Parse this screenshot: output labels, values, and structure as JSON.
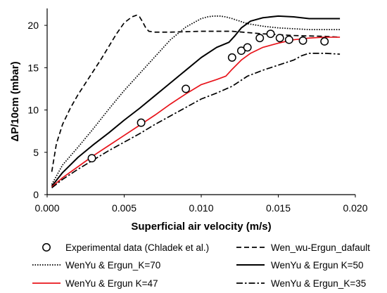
{
  "chart_data": {
    "type": "line",
    "title": "",
    "xlabel": "Superficial air velocity (m/s)",
    "ylabel": "ΔP/10cm (mbar)",
    "xlim": [
      0,
      0.02
    ],
    "ylim": [
      0,
      22
    ],
    "x_ticks": [
      0,
      0.005,
      0.01,
      0.015,
      0.02
    ],
    "x_tick_labels": [
      "0.000",
      "0.005",
      "0.010",
      "0.015",
      "0.020"
    ],
    "y_ticks": [
      0,
      5,
      10,
      15,
      20
    ],
    "y_tick_labels": [
      "0",
      "5",
      "10",
      "15",
      "20"
    ],
    "grid": false,
    "legend_position": "bottom",
    "series": [
      {
        "name": "Experimental data (Chladek et al.)",
        "style": "markers",
        "color": "#000000",
        "x": [
          0.0029,
          0.0061,
          0.009,
          0.012,
          0.0126,
          0.013,
          0.0138,
          0.0145,
          0.0151,
          0.0157,
          0.0166,
          0.018
        ],
        "y": [
          4.3,
          8.5,
          12.5,
          16.2,
          17.0,
          17.4,
          18.5,
          19.0,
          18.5,
          18.3,
          18.2,
          18.1
        ]
      },
      {
        "name": "Wen_wu-Ergun_dafault",
        "style": "dashed",
        "color": "#000000",
        "x": [
          0.0003,
          0.0006,
          0.001,
          0.0015,
          0.002,
          0.0025,
          0.003,
          0.0035,
          0.004,
          0.0045,
          0.005,
          0.0055,
          0.0058,
          0.006,
          0.0062,
          0.0064,
          0.0066,
          0.007,
          0.008,
          0.01,
          0.012,
          0.014,
          0.016,
          0.018,
          0.019
        ],
        "y": [
          2.7,
          6.0,
          8.3,
          10.2,
          11.8,
          13.2,
          14.6,
          16.0,
          17.5,
          19.0,
          20.3,
          21.0,
          21.2,
          21.0,
          20.4,
          19.7,
          19.3,
          19.2,
          19.2,
          19.3,
          19.3,
          19.0,
          18.8,
          18.7,
          18.6
        ]
      },
      {
        "name": "WenYu & Ergun_K=70",
        "style": "dotted",
        "color": "#000000",
        "x": [
          0.0003,
          0.001,
          0.002,
          0.003,
          0.004,
          0.005,
          0.006,
          0.007,
          0.008,
          0.009,
          0.01,
          0.0104,
          0.0108,
          0.0112,
          0.0116,
          0.012,
          0.0125,
          0.013,
          0.014,
          0.015,
          0.016,
          0.017,
          0.019
        ],
        "y": [
          1.2,
          3.5,
          5.6,
          7.8,
          10.1,
          12.3,
          14.3,
          16.3,
          18.3,
          19.8,
          20.8,
          21.0,
          21.1,
          21.1,
          21.0,
          20.8,
          20.5,
          20.2,
          19.9,
          19.7,
          19.6,
          19.5,
          19.5
        ]
      },
      {
        "name": "WenYu & Ergun K=50",
        "style": "solid",
        "color": "#000000",
        "x": [
          0.0003,
          0.001,
          0.002,
          0.003,
          0.004,
          0.005,
          0.006,
          0.007,
          0.008,
          0.009,
          0.01,
          0.011,
          0.0118,
          0.0122,
          0.0126,
          0.0132,
          0.014,
          0.015,
          0.016,
          0.017,
          0.019
        ],
        "y": [
          1.0,
          2.6,
          4.4,
          5.9,
          7.3,
          8.8,
          10.2,
          11.7,
          13.2,
          14.7,
          16.2,
          17.4,
          18.0,
          18.8,
          19.7,
          20.5,
          20.9,
          21.1,
          21.0,
          20.8,
          20.8
        ]
      },
      {
        "name": "WenYu & Ergun K=47",
        "style": "solid",
        "color": "#e8141b",
        "x": [
          0.0003,
          0.001,
          0.002,
          0.003,
          0.004,
          0.005,
          0.006,
          0.007,
          0.008,
          0.009,
          0.01,
          0.011,
          0.0116,
          0.012,
          0.0126,
          0.0132,
          0.014,
          0.015,
          0.016,
          0.017,
          0.018,
          0.019
        ],
        "y": [
          0.9,
          2.0,
          3.3,
          4.6,
          5.8,
          7.0,
          8.2,
          9.4,
          10.7,
          11.9,
          13.0,
          13.6,
          14.0,
          14.8,
          15.9,
          16.7,
          17.4,
          17.9,
          18.3,
          18.5,
          18.6,
          18.6
        ]
      },
      {
        "name": "WenYu & Ergun_K=35",
        "style": "dashdot",
        "color": "#000000",
        "x": [
          0.0003,
          0.001,
          0.002,
          0.003,
          0.004,
          0.005,
          0.006,
          0.007,
          0.008,
          0.009,
          0.01,
          0.011,
          0.012,
          0.013,
          0.014,
          0.015,
          0.016,
          0.0165,
          0.017,
          0.018,
          0.019
        ],
        "y": [
          0.8,
          1.8,
          3.0,
          4.1,
          5.2,
          6.2,
          7.2,
          8.3,
          9.3,
          10.3,
          11.3,
          12.0,
          12.8,
          14.0,
          14.7,
          15.3,
          15.9,
          16.4,
          16.7,
          16.7,
          16.6
        ]
      }
    ]
  }
}
